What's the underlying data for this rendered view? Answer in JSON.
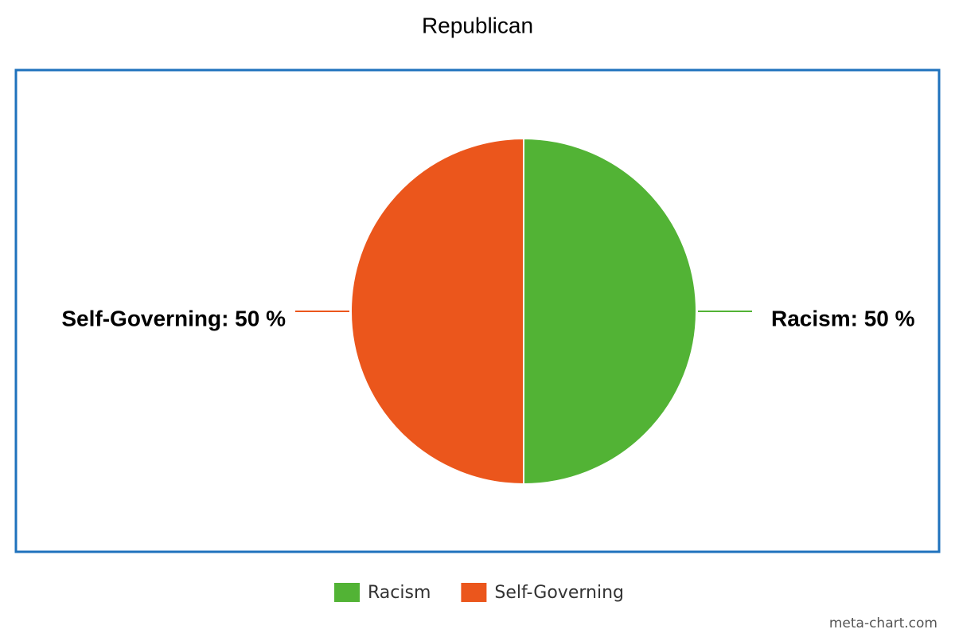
{
  "chart_data": {
    "type": "pie",
    "title": "Republican",
    "categories": [
      "Racism",
      "Self-Governing"
    ],
    "values": [
      50,
      50
    ],
    "value_labels": [
      "Racism: 50 %",
      "Self-Governing: 50 %"
    ],
    "colors": [
      "#52b335",
      "#eb561c"
    ],
    "legend": "bottom",
    "source": "meta-chart.com"
  }
}
